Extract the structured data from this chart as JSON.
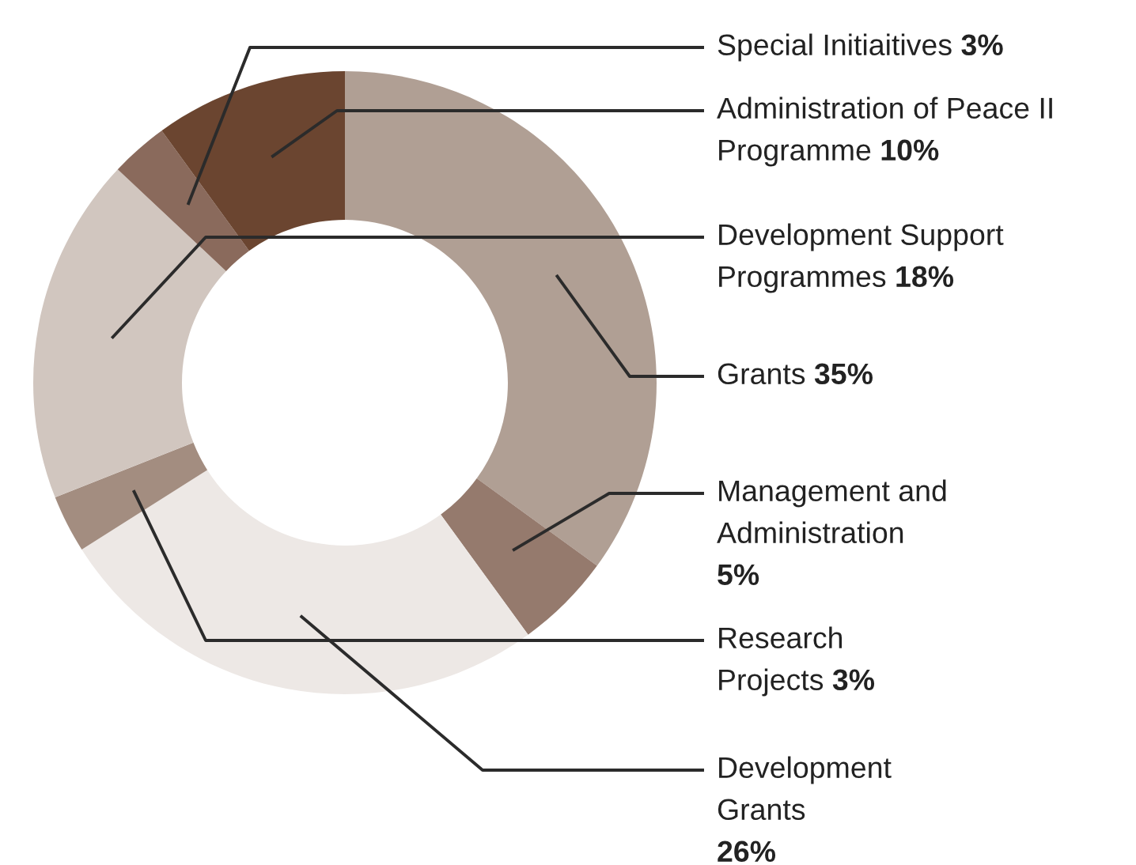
{
  "chart_data": {
    "type": "donut",
    "categories": [
      "Grants",
      "Management and\nAdministration",
      "Development\nGrants",
      "Research\nProjects",
      "Development Support\nProgrammes",
      "Special Initiaitives",
      "Administration of Peace II\nProgramme"
    ],
    "values": [
      35,
      5,
      26,
      3,
      18,
      3,
      10
    ],
    "value_labels": [
      "35%",
      "5%",
      "26%",
      "3%",
      "18%",
      "3%",
      "10%"
    ],
    "colors": [
      "#b09f94",
      "#957a6d",
      "#ede8e5",
      "#a38d80",
      "#d1c6bf",
      "#8a6a5c",
      "#6b4530"
    ]
  }
}
